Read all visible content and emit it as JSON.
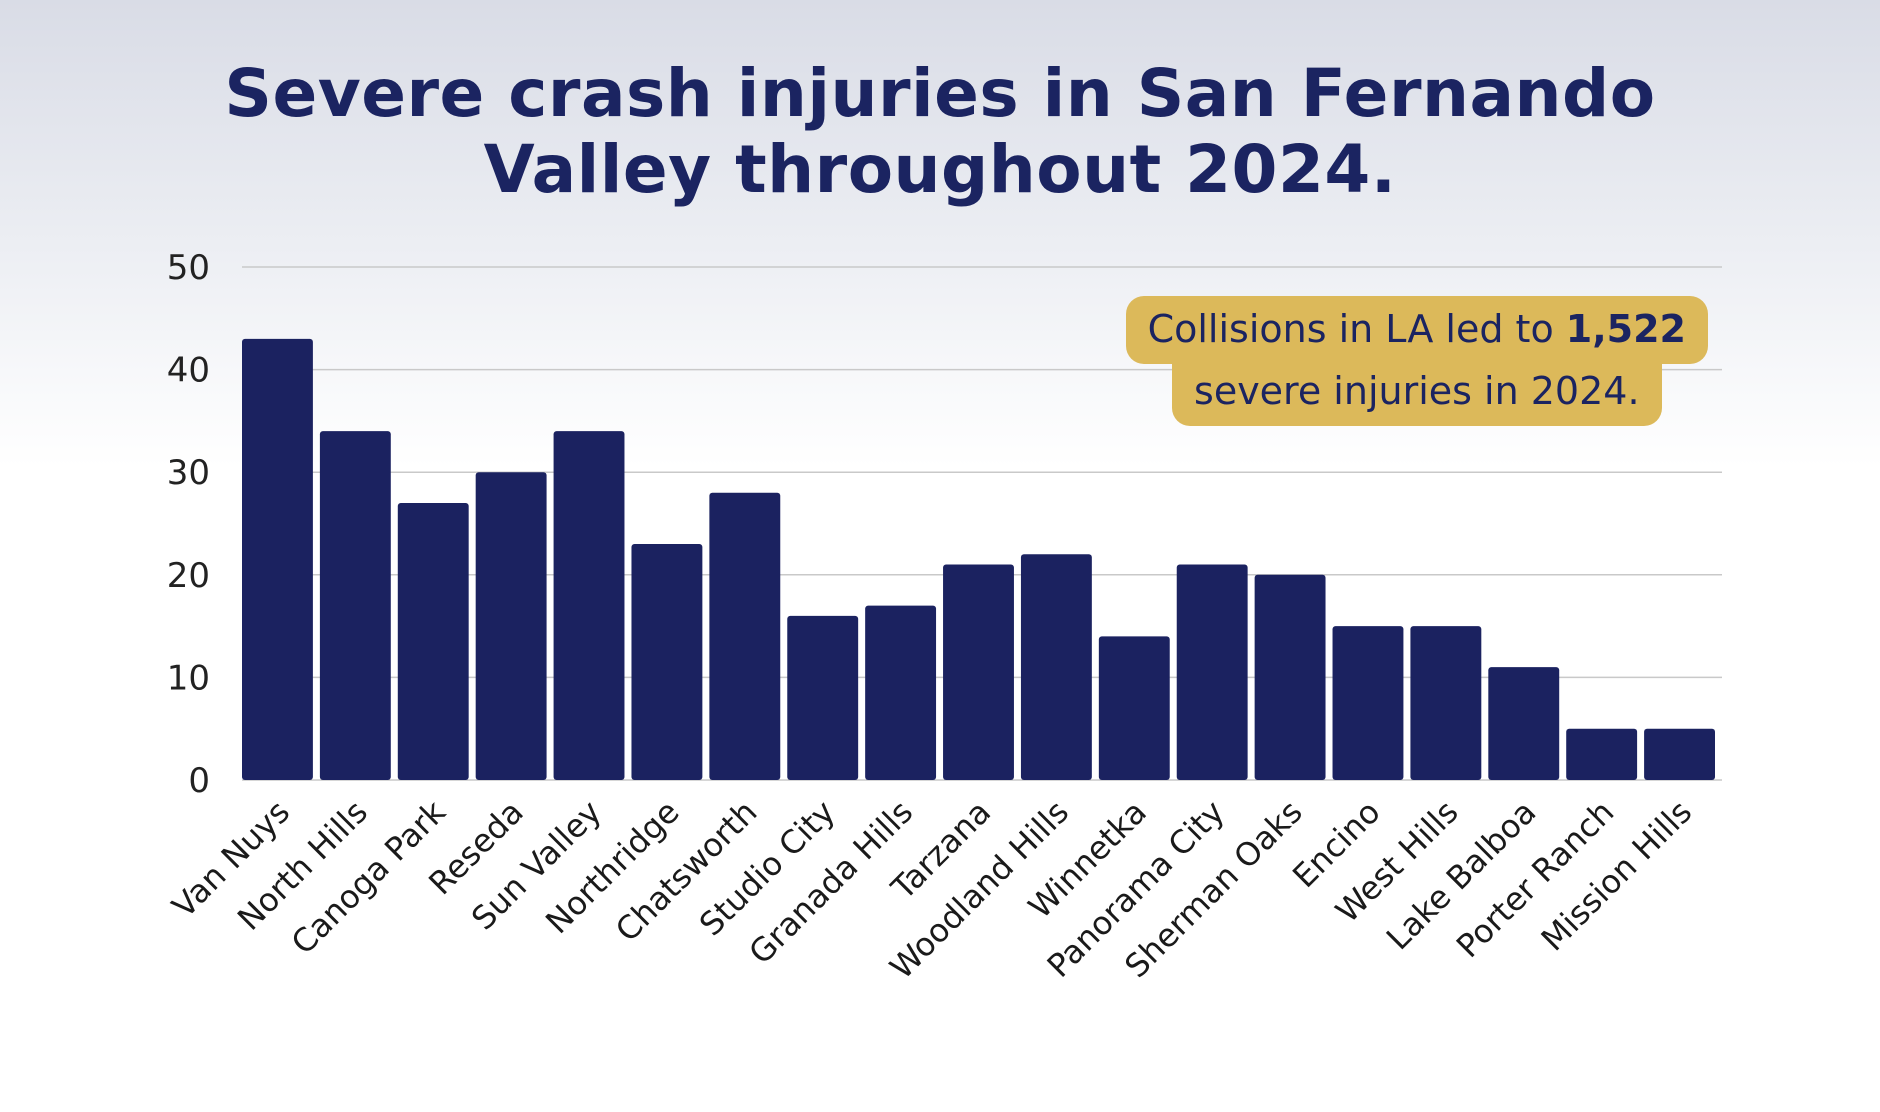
{
  "title": {
    "line1": "Severe crash injuries in San Fernando",
    "line2": "Valley throughout 2024."
  },
  "callout": {
    "line1_prefix": "Collisions in LA led to ",
    "line1_bold": "1,522",
    "line2": "severe injuries in 2024.",
    "background": "#dcb95a",
    "text_color": "#1b2461"
  },
  "colors": {
    "bar": "#1b2260",
    "title": "#1b2461"
  },
  "chart_data": {
    "type": "bar",
    "title": "Severe crash injuries in San Fernando Valley throughout 2024.",
    "xlabel": "",
    "ylabel": "",
    "ylim": [
      0,
      50
    ],
    "yticks": [
      0,
      10,
      20,
      30,
      40,
      50
    ],
    "grid": true,
    "categories": [
      "Van Nuys",
      "North Hills",
      "Canoga Park",
      "Reseda",
      "Sun Valley",
      "Northridge",
      "Chatsworth",
      "Studio City",
      "Granada Hills",
      "Tarzana",
      "Woodland Hills",
      "Winnetka",
      "Panorama City",
      "Sherman Oaks",
      "Encino",
      "West Hills",
      "Lake Balboa",
      "Porter Ranch",
      "Mission Hills"
    ],
    "values": [
      43,
      34,
      27,
      30,
      34,
      23,
      28,
      16,
      17,
      21,
      22,
      14,
      21,
      20,
      15,
      15,
      11,
      5,
      5
    ]
  }
}
